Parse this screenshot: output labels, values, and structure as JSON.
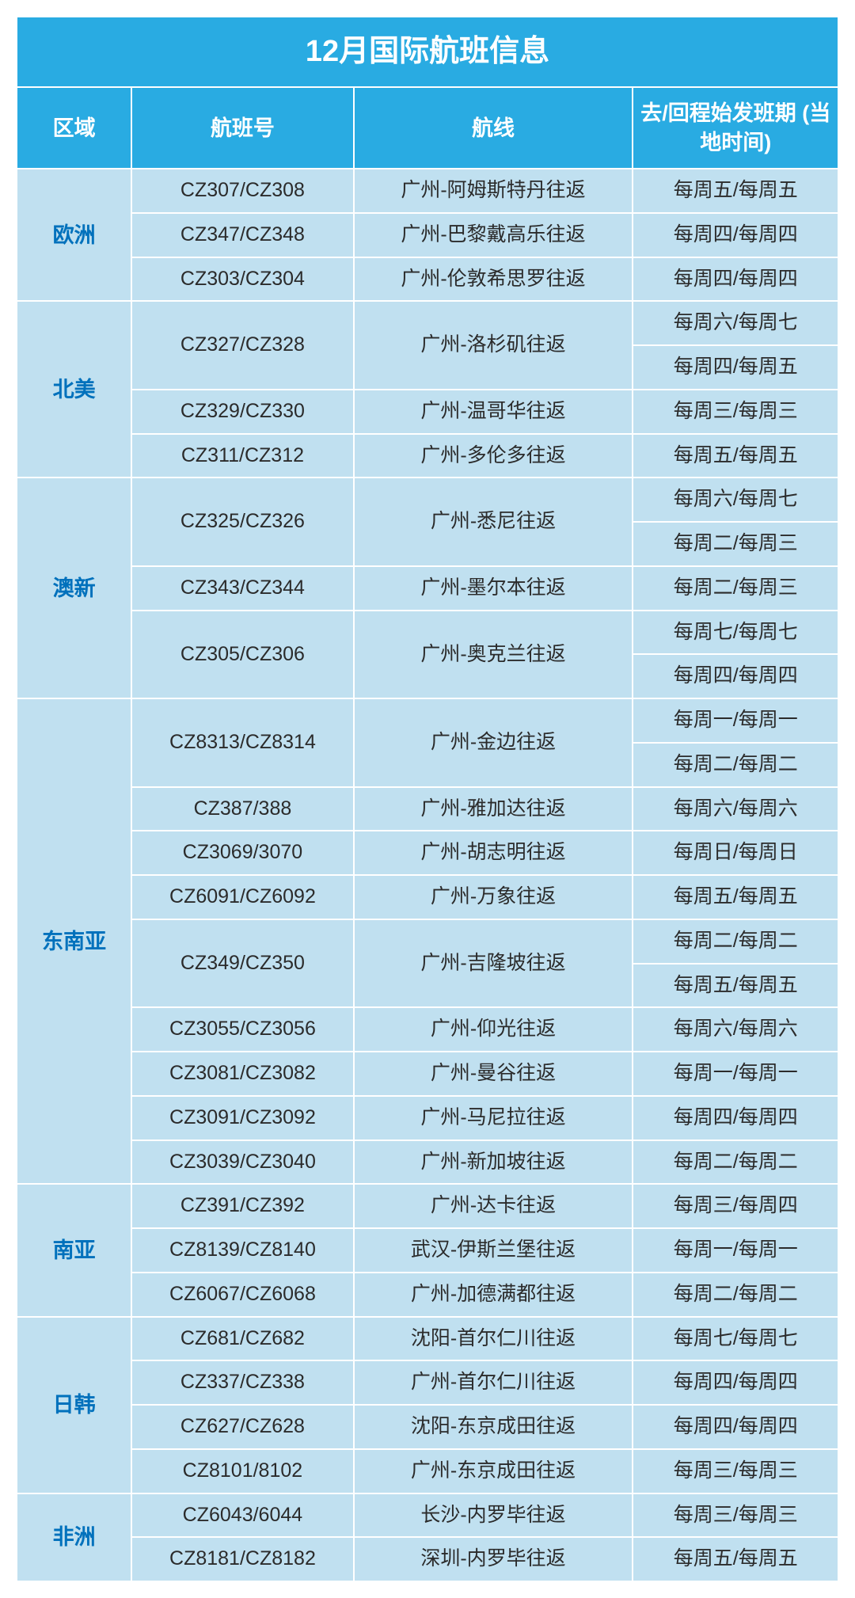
{
  "title": "12月国际航班信息",
  "columns": [
    "区域",
    "航班号",
    "航线",
    "去/回程始发班期\n(当地时间)"
  ],
  "colors": {
    "header_bg": "#29abe2",
    "header_fg": "#ffffff",
    "cell_bg": "#c0e0f0",
    "region_fg": "#0071bc",
    "data_fg": "#2b2b2b",
    "border": "#ffffff"
  },
  "regions": [
    {
      "name": "欧洲",
      "rows": [
        {
          "flight": "CZ307/CZ308",
          "route": "广州-阿姆斯特丹往返",
          "schedules": [
            "每周五/每周五"
          ]
        },
        {
          "flight": "CZ347/CZ348",
          "route": "广州-巴黎戴高乐往返",
          "schedules": [
            "每周四/每周四"
          ]
        },
        {
          "flight": "CZ303/CZ304",
          "route": "广州-伦敦希思罗往返",
          "schedules": [
            "每周四/每周四"
          ]
        }
      ]
    },
    {
      "name": "北美",
      "rows": [
        {
          "flight": "CZ327/CZ328",
          "route": "广州-洛杉矶往返",
          "schedules": [
            "每周六/每周七",
            "每周四/每周五"
          ]
        },
        {
          "flight": "CZ329/CZ330",
          "route": "广州-温哥华往返",
          "schedules": [
            "每周三/每周三"
          ]
        },
        {
          "flight": "CZ311/CZ312",
          "route": "广州-多伦多往返",
          "schedules": [
            "每周五/每周五"
          ]
        }
      ]
    },
    {
      "name": "澳新",
      "rows": [
        {
          "flight": "CZ325/CZ326",
          "route": "广州-悉尼往返",
          "schedules": [
            "每周六/每周七",
            "每周二/每周三"
          ]
        },
        {
          "flight": "CZ343/CZ344",
          "route": "广州-墨尔本往返",
          "schedules": [
            "每周二/每周三"
          ]
        },
        {
          "flight": "CZ305/CZ306",
          "route": "广州-奥克兰往返",
          "schedules": [
            "每周七/每周七",
            "每周四/每周四"
          ]
        }
      ]
    },
    {
      "name": "东南亚",
      "rows": [
        {
          "flight": "CZ8313/CZ8314",
          "route": "广州-金边往返",
          "schedules": [
            "每周一/每周一",
            "每周二/每周二"
          ]
        },
        {
          "flight": "CZ387/388",
          "route": "广州-雅加达往返",
          "schedules": [
            "每周六/每周六"
          ]
        },
        {
          "flight": "CZ3069/3070",
          "route": "广州-胡志明往返",
          "schedules": [
            "每周日/每周日"
          ]
        },
        {
          "flight": "CZ6091/CZ6092",
          "route": "广州-万象往返",
          "schedules": [
            "每周五/每周五"
          ]
        },
        {
          "flight": "CZ349/CZ350",
          "route": "广州-吉隆坡往返",
          "schedules": [
            "每周二/每周二",
            "每周五/每周五"
          ]
        },
        {
          "flight": "CZ3055/CZ3056",
          "route": "广州-仰光往返",
          "schedules": [
            "每周六/每周六"
          ]
        },
        {
          "flight": "CZ3081/CZ3082",
          "route": "广州-曼谷往返",
          "schedules": [
            "每周一/每周一"
          ]
        },
        {
          "flight": "CZ3091/CZ3092",
          "route": "广州-马尼拉往返",
          "schedules": [
            "每周四/每周四"
          ]
        },
        {
          "flight": "CZ3039/CZ3040",
          "route": "广州-新加坡往返",
          "schedules": [
            "每周二/每周二"
          ]
        }
      ]
    },
    {
      "name": "南亚",
      "rows": [
        {
          "flight": "CZ391/CZ392",
          "route": "广州-达卡往返",
          "schedules": [
            "每周三/每周四"
          ]
        },
        {
          "flight": "CZ8139/CZ8140",
          "route": "武汉-伊斯兰堡往返",
          "schedules": [
            "每周一/每周一"
          ]
        },
        {
          "flight": "CZ6067/CZ6068",
          "route": "广州-加德满都往返",
          "schedules": [
            "每周二/每周二"
          ]
        }
      ]
    },
    {
      "name": "日韩",
      "rows": [
        {
          "flight": "CZ681/CZ682",
          "route": "沈阳-首尔仁川往返",
          "schedules": [
            "每周七/每周七"
          ]
        },
        {
          "flight": "CZ337/CZ338",
          "route": "广州-首尔仁川往返",
          "schedules": [
            "每周四/每周四"
          ]
        },
        {
          "flight": "CZ627/CZ628",
          "route": "沈阳-东京成田往返",
          "schedules": [
            "每周四/每周四"
          ]
        },
        {
          "flight": "CZ8101/8102",
          "route": "广州-东京成田往返",
          "schedules": [
            "每周三/每周三"
          ]
        }
      ]
    },
    {
      "name": "非洲",
      "rows": [
        {
          "flight": "CZ6043/6044",
          "route": "长沙-内罗毕往返",
          "schedules": [
            "每周三/每周三"
          ]
        },
        {
          "flight": "CZ8181/CZ8182",
          "route": "深圳-内罗毕往返",
          "schedules": [
            "每周五/每周五"
          ]
        }
      ]
    }
  ]
}
